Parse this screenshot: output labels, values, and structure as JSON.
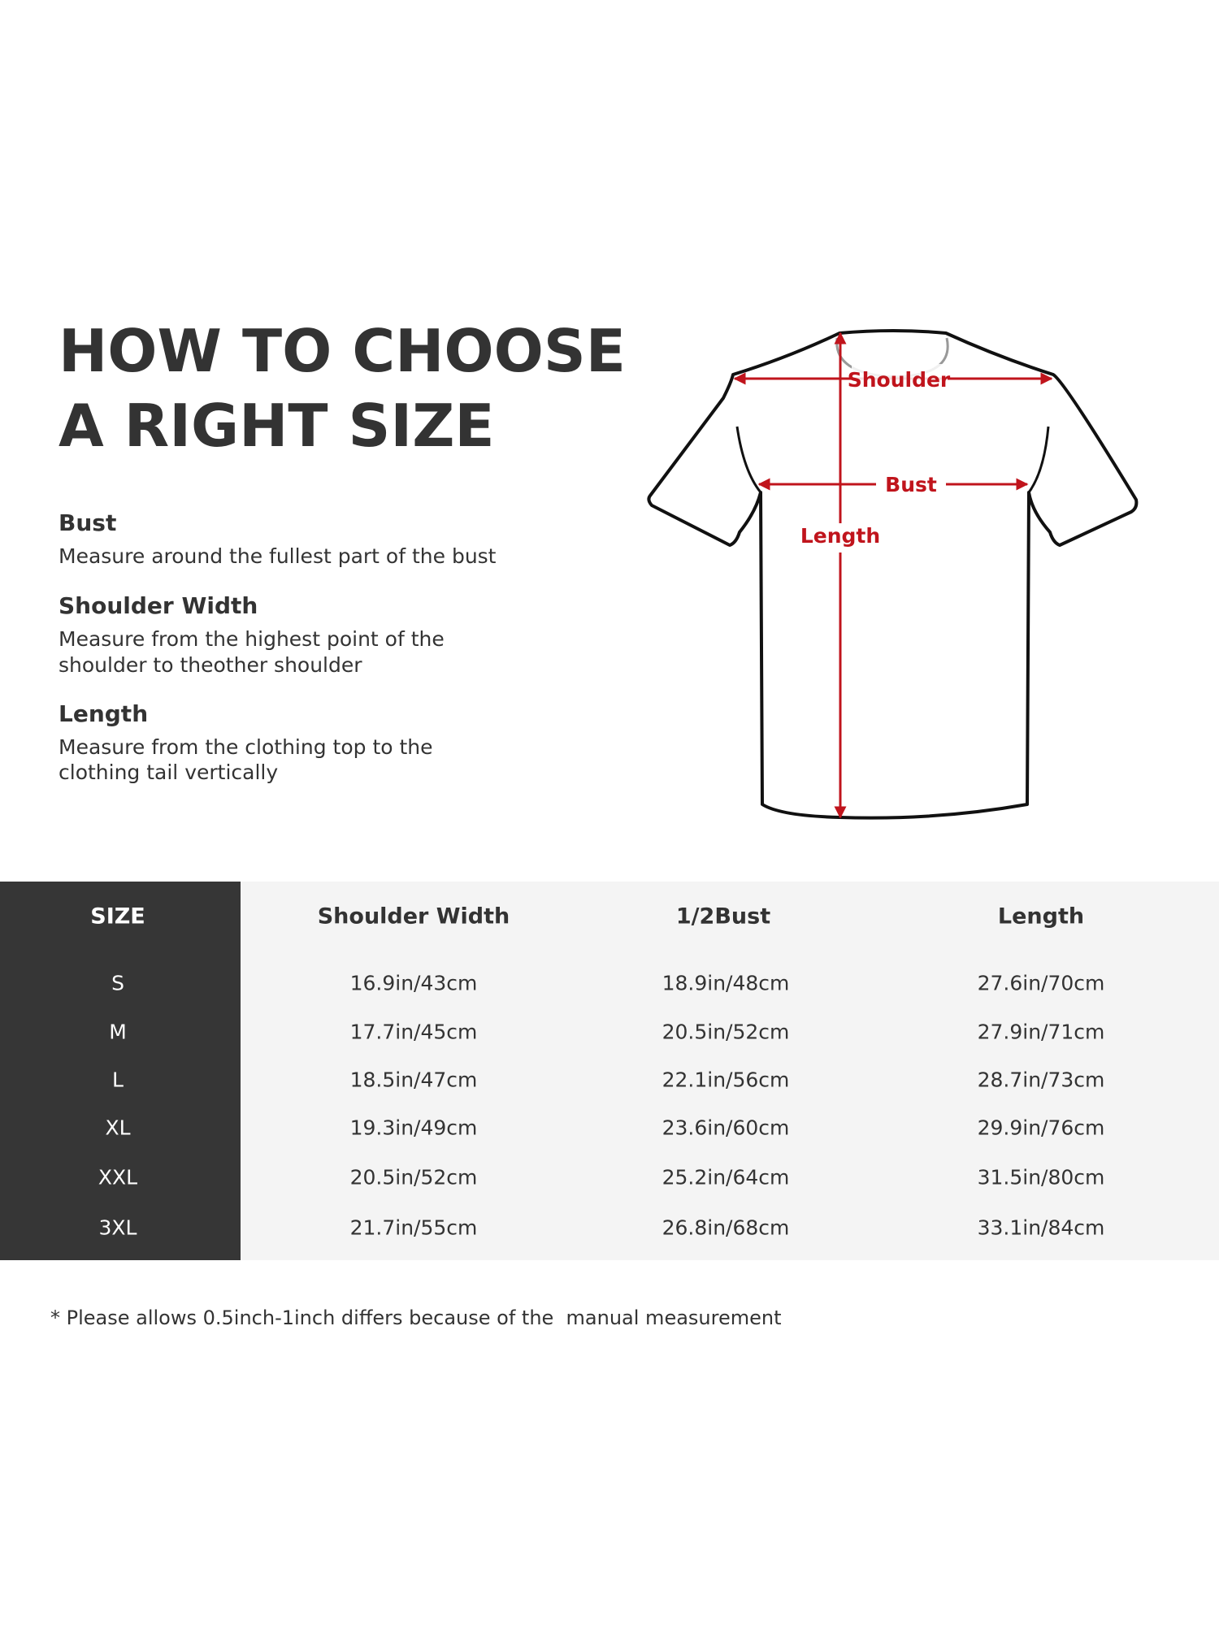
{
  "title": {
    "line1": "HOW TO CHOOSE",
    "line2": "A RIGHT SIZE"
  },
  "guide": [
    {
      "heading": "Bust",
      "desc": [
        "Measure around the fullest part of the bust"
      ]
    },
    {
      "heading": "Shoulder Width",
      "desc": [
        "Measure from the highest point of the",
        "shoulder to theother shoulder"
      ]
    },
    {
      "heading": "Length",
      "desc": [
        "Measure from the clothing top to the",
        "clothing tail vertically"
      ]
    }
  ],
  "diagram": {
    "shoulder": "Shoulder",
    "bust": "Bust",
    "length": "Length",
    "arrow_color": "#c0141c"
  },
  "table": {
    "headers": [
      "SIZE",
      "Shoulder Width",
      "1/2Bust",
      "Length"
    ],
    "rows": [
      [
        "S",
        "16.9in/43cm",
        "18.9in/48cm",
        "27.6in/70cm"
      ],
      [
        "M",
        "17.7in/45cm",
        "20.5in/52cm",
        "27.9in/71cm"
      ],
      [
        "L",
        "18.5in/47cm",
        "22.1in/56cm",
        "28.7in/73cm"
      ],
      [
        "XL",
        "19.3in/49cm",
        "23.6in/60cm",
        "29.9in/76cm"
      ],
      [
        "XXL",
        "20.5in/52cm",
        "25.2in/64cm",
        "31.5in/80cm"
      ],
      [
        "3XL",
        "21.7in/55cm",
        "26.8in/68cm",
        "33.1in/84cm"
      ]
    ]
  },
  "footnote": "* Please allows 0.5inch-1inch differs because of the  manual measurement"
}
